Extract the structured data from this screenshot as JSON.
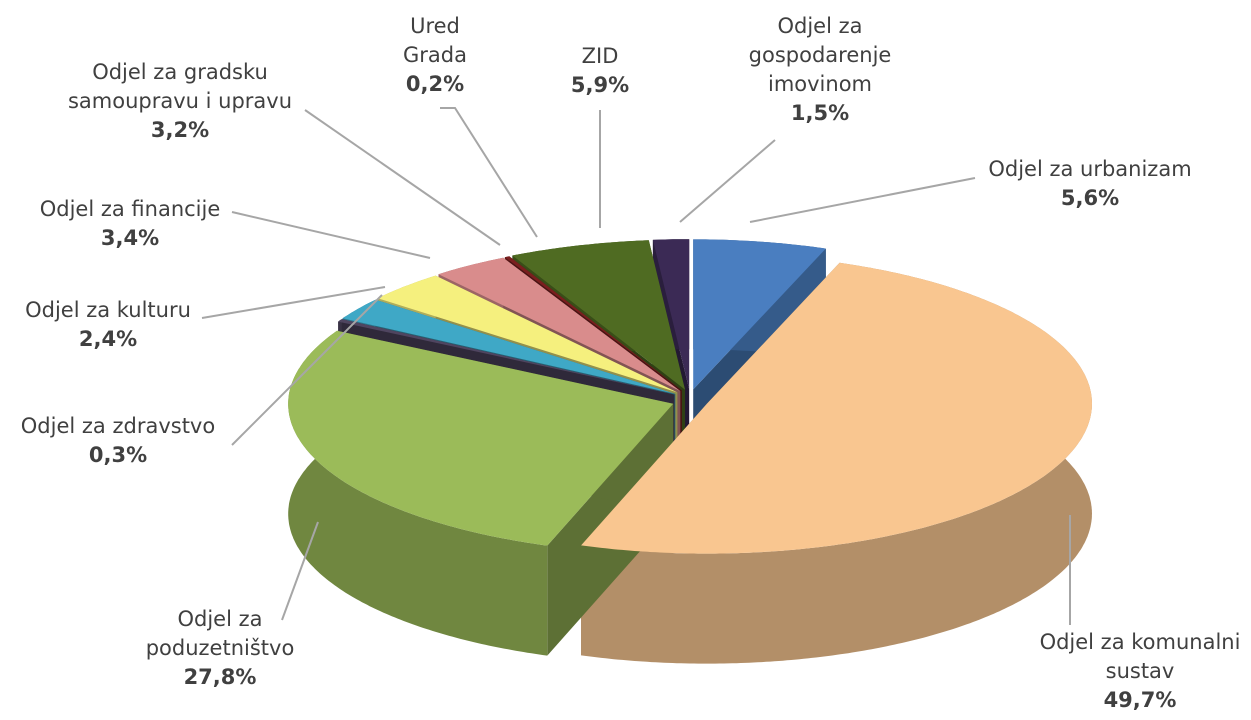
{
  "chart_data": {
    "type": "pie3d",
    "categories": [
      "Odjel za urbanizam",
      "Odjel za komunalni sustav",
      "Odjel za poduzetništvo",
      "Odjel za zdravstvo",
      "Odjel za kulturu",
      "Odjel za financije",
      "Odjel za gradsku samoupravu i upravu",
      "Ured Grada",
      "ZID",
      "Odjel za gospodarenje imovinom"
    ],
    "values": [
      5.6,
      49.7,
      27.8,
      0.3,
      2.4,
      3.4,
      3.2,
      0.2,
      5.9,
      1.5
    ],
    "value_labels": [
      "5,6%",
      "49,7%",
      "27,8%",
      "0,3%",
      "2,4%",
      "3,4%",
      "3,2%",
      "0,2%",
      "5,9%",
      "1,5%"
    ],
    "colors": [
      "#4a7ec0",
      "#f9c690",
      "#9bbb59",
      "#4f4560",
      "#3fa8c6",
      "#f5f07e",
      "#d98c8c",
      "#7a1f1f",
      "#4f6b22",
      "#3b2a55"
    ]
  }
}
